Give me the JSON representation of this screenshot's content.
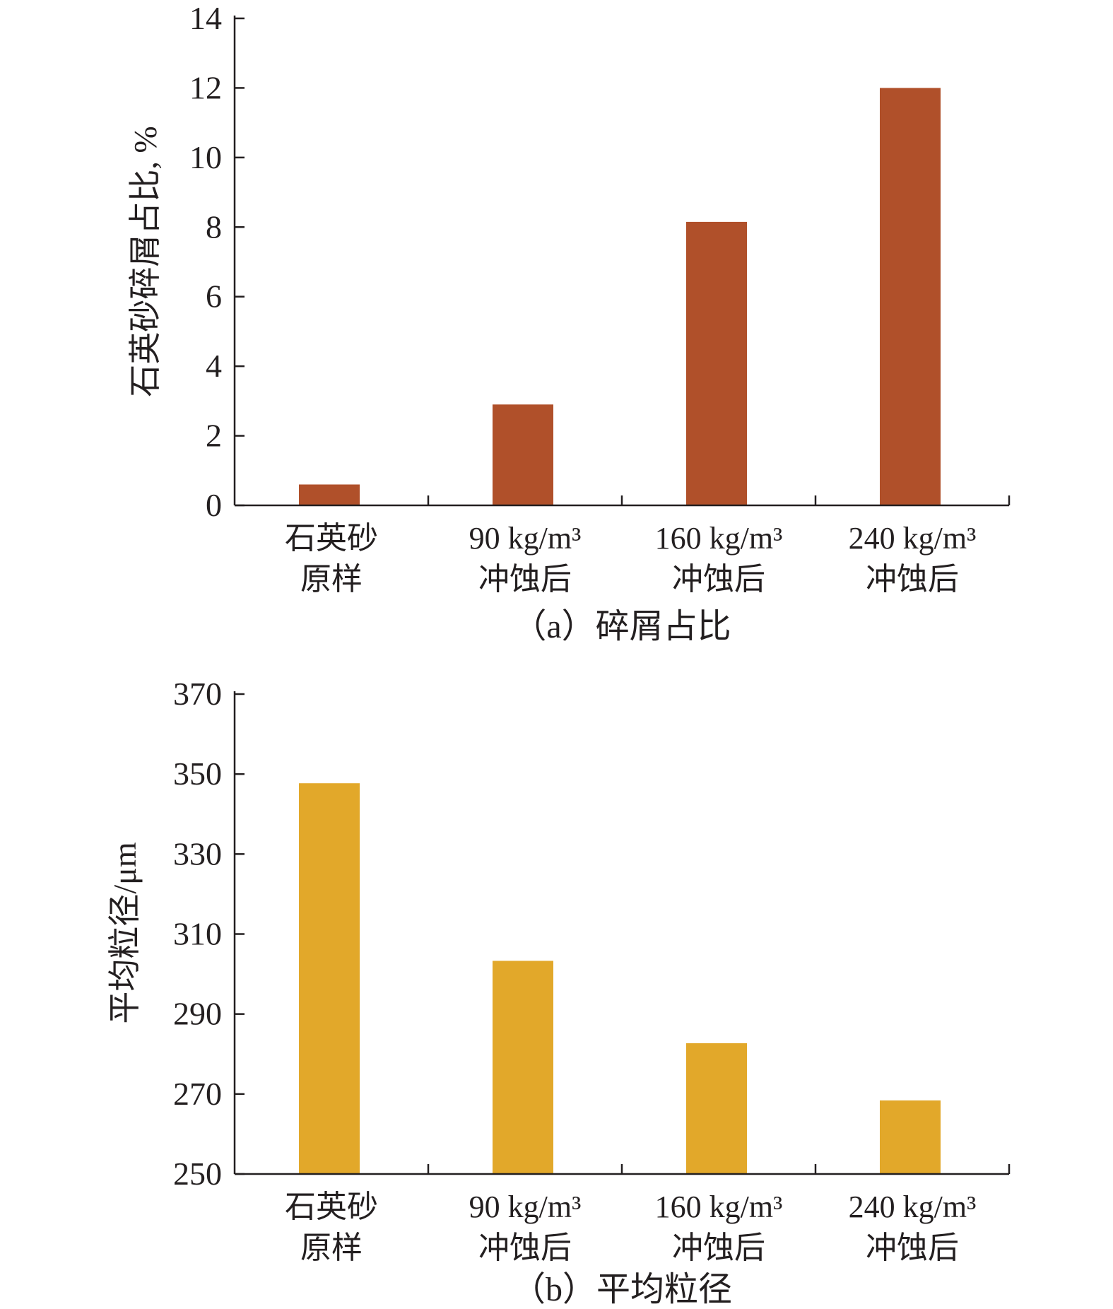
{
  "chart_data": [
    {
      "type": "bar",
      "caption": "（a）碎屑占比",
      "ylabel": "石英砂碎屑占比, %",
      "xlabel": "",
      "categories": [
        [
          "石英砂",
          "原样"
        ],
        [
          "90 kg/m³",
          "冲蚀后"
        ],
        [
          "160 kg/m³",
          "冲蚀后"
        ],
        [
          "240 kg/m³",
          "冲蚀后"
        ]
      ],
      "values": [
        0.6,
        2.9,
        8.15,
        12.0
      ],
      "ylim": [
        0,
        14
      ],
      "yticks": [
        "0",
        "2",
        "4",
        "6",
        "8",
        "10",
        "12",
        "14"
      ],
      "color": "#B0502A",
      "grid": false
    },
    {
      "type": "bar",
      "caption": "（b）平均粒径",
      "ylabel": "平均粒径/μm",
      "xlabel": "",
      "categories": [
        [
          "石英砂",
          "原样"
        ],
        [
          "90 kg/m³",
          "冲蚀后"
        ],
        [
          "160 kg/m³",
          "冲蚀后"
        ],
        [
          "240 kg/m³",
          "冲蚀后"
        ]
      ],
      "values": [
        347.7,
        303.3,
        282.7,
        268.4
      ],
      "ylim": [
        250,
        370
      ],
      "yticks": [
        "250",
        "270",
        "290",
        "310",
        "330",
        "350",
        "370"
      ],
      "color": "#E2A82A",
      "grid": false
    }
  ]
}
